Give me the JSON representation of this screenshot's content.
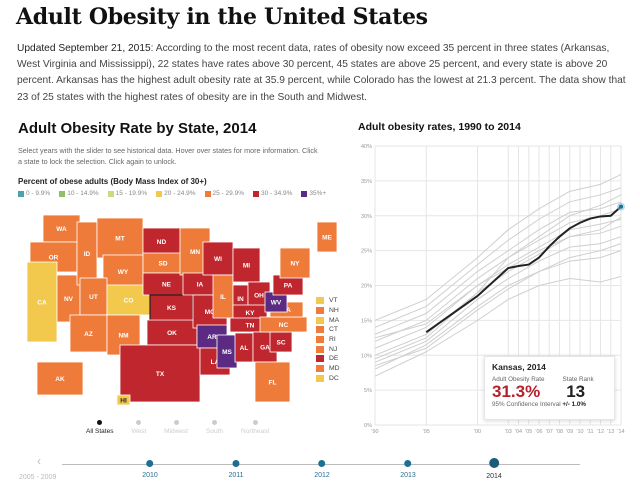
{
  "header": {
    "title": "Adult Obesity in the United States",
    "intro_lead": "Updated September 21, 2015",
    "intro_text": ": According to the most recent data, rates of obesity now exceed 35 percent in three states (Arkansas, West Virginia and Mississippi), 22 states have rates above 30 percent, 45 states are above 25 percent, and every state is above 20 percent. Arkansas has the highest adult obesity rate at 35.9 percent, while Colorado has the lowest at 21.3 percent. The data show that 23 of 25 states with the highest rates of obesity are in the South and Midwest."
  },
  "map": {
    "title": "Adult Obesity Rate by State, 2014",
    "description": "Select years with the slider to see historical data. Hover over states for more information. Click a state to lock the selection. Click again to unlock.",
    "legend_title": "Percent of obese adults (Body Mass Index of 30+)",
    "legend": [
      {
        "key": "0",
        "label": "0 - 9.9%",
        "color": "#4aa3a8"
      },
      {
        "key": "10",
        "label": "10 - 14.9%",
        "color": "#8fbf6a"
      },
      {
        "key": "15",
        "label": "15 - 19.9%",
        "color": "#cfd97c"
      },
      {
        "key": "20",
        "label": "20 - 24.9%",
        "color": "#f2c94c"
      },
      {
        "key": "25",
        "label": "25 - 29.9%",
        "color": "#ee7b3a"
      },
      {
        "key": "30",
        "label": "30 - 34.9%",
        "color": "#c0262d"
      },
      {
        "key": "35",
        "label": "35%+",
        "color": "#5b2a83"
      }
    ],
    "selected_state": "KS",
    "states": {
      "WA": "25",
      "OR": "25",
      "CA": "20",
      "NV": "25",
      "ID": "25",
      "MT": "25",
      "WY": "25",
      "UT": "25",
      "CO": "20",
      "AZ": "25",
      "NM": "25",
      "ND": "30",
      "SD": "25",
      "NE": "30",
      "KS": "30",
      "OK": "30",
      "TX": "30",
      "MN": "25",
      "IA": "30",
      "MO": "30",
      "AR": "35",
      "LA": "30",
      "WI": "30",
      "IL": "25",
      "MS": "35",
      "MI": "30",
      "IN": "30",
      "OH": "30",
      "KY": "30",
      "TN": "30",
      "AL": "30",
      "GA": "30",
      "FL": "25",
      "SC": "30",
      "NC": "25",
      "VA": "25",
      "WV": "35",
      "PA": "30",
      "NY": "25",
      "ME": "25",
      "AK": "25",
      "HI": "20"
    },
    "callouts": [
      {
        "abbr": "VT",
        "cat": "20"
      },
      {
        "abbr": "NH",
        "cat": "25"
      },
      {
        "abbr": "MA",
        "cat": "20"
      },
      {
        "abbr": "CT",
        "cat": "25"
      },
      {
        "abbr": "RI",
        "cat": "25"
      },
      {
        "abbr": "NJ",
        "cat": "25"
      },
      {
        "abbr": "DE",
        "cat": "30"
      },
      {
        "abbr": "MD",
        "cat": "25"
      },
      {
        "abbr": "DC",
        "cat": "20"
      }
    ],
    "regions": [
      {
        "label": "All States",
        "active": true
      },
      {
        "label": "West",
        "active": false
      },
      {
        "label": "Midwest",
        "active": false
      },
      {
        "label": "South",
        "active": false
      },
      {
        "label": "Northeast",
        "active": false
      }
    ]
  },
  "chart_data": {
    "type": "line",
    "title": "Adult obesity rates, 1990 to 2014",
    "xlim": [
      1990,
      2014
    ],
    "ylim": [
      0,
      40
    ],
    "x_tick_labels": [
      "'90",
      "'95",
      "'00",
      "'03",
      "'04",
      "'05",
      "'06",
      "'07",
      "'08",
      "'09",
      "'10",
      "'11",
      "'12",
      "'13",
      "'14"
    ],
    "x_ticks": [
      1990,
      1995,
      2000,
      2003,
      2004,
      2005,
      2006,
      2007,
      2008,
      2009,
      2010,
      2011,
      2012,
      2013,
      2014
    ],
    "y_ticks": [
      0,
      5,
      10,
      15,
      20,
      25,
      30,
      35,
      40
    ],
    "y_tick_labels": [
      "0%",
      "5%",
      "10%",
      "15%",
      "20%",
      "25%",
      "30%",
      "35%",
      "40%"
    ],
    "grid": true,
    "highlight": {
      "name": "Kansas",
      "color": "#222222",
      "x": [
        1995,
        2000,
        2003,
        2004,
        2005,
        2006,
        2007,
        2008,
        2009,
        2010,
        2011,
        2012,
        2013,
        2014
      ],
      "y": [
        13.3,
        18.5,
        22.5,
        22.8,
        23.0,
        24.0,
        25.6,
        27.0,
        28.2,
        29.0,
        29.6,
        29.9,
        30.0,
        31.3
      ]
    },
    "other_states_x": [
      1990,
      1995,
      2000,
      2003,
      2006,
      2009,
      2012,
      2014
    ],
    "other_states": [
      [
        7,
        10.5,
        15,
        18,
        20,
        21,
        20.5,
        21.3
      ],
      [
        8,
        11.5,
        17,
        20,
        22,
        23.5,
        24,
        25
      ],
      [
        9,
        12,
        18,
        21,
        23.5,
        25.5,
        26,
        27
      ],
      [
        10,
        13,
        19,
        22,
        24.5,
        27,
        27.5,
        28.5
      ],
      [
        11,
        14,
        20,
        23,
        25.5,
        28,
        28.8,
        29.5
      ],
      [
        12,
        15,
        21,
        24,
        26.5,
        29,
        30,
        31
      ],
      [
        13,
        16,
        22,
        25,
        28,
        30.5,
        31,
        32
      ],
      [
        14,
        17,
        23,
        26.5,
        29.5,
        32,
        33,
        34
      ],
      [
        15,
        18,
        24,
        28,
        31,
        33.5,
        34.5,
        35.9
      ],
      [
        9.5,
        12.5,
        19,
        24,
        27,
        30,
        31.5,
        33
      ],
      [
        8.5,
        11,
        16.5,
        19.5,
        22,
        24,
        25,
        26
      ],
      [
        12.5,
        14.5,
        20,
        22.5,
        25,
        27,
        28,
        29.8
      ]
    ],
    "tooltip": {
      "title": "Kansas, 2014",
      "rate_label": "Adult Obesity Rate",
      "rate": "31.3%",
      "rank_label": "State Rank",
      "rank": "13",
      "ci_label": "95% Confidence Interval",
      "ci": "+/- 1.0%"
    }
  },
  "slider": {
    "prev_label": "2005 - 2009",
    "years": [
      "2010",
      "2011",
      "2012",
      "2013",
      "2014"
    ],
    "selected": "2014"
  }
}
